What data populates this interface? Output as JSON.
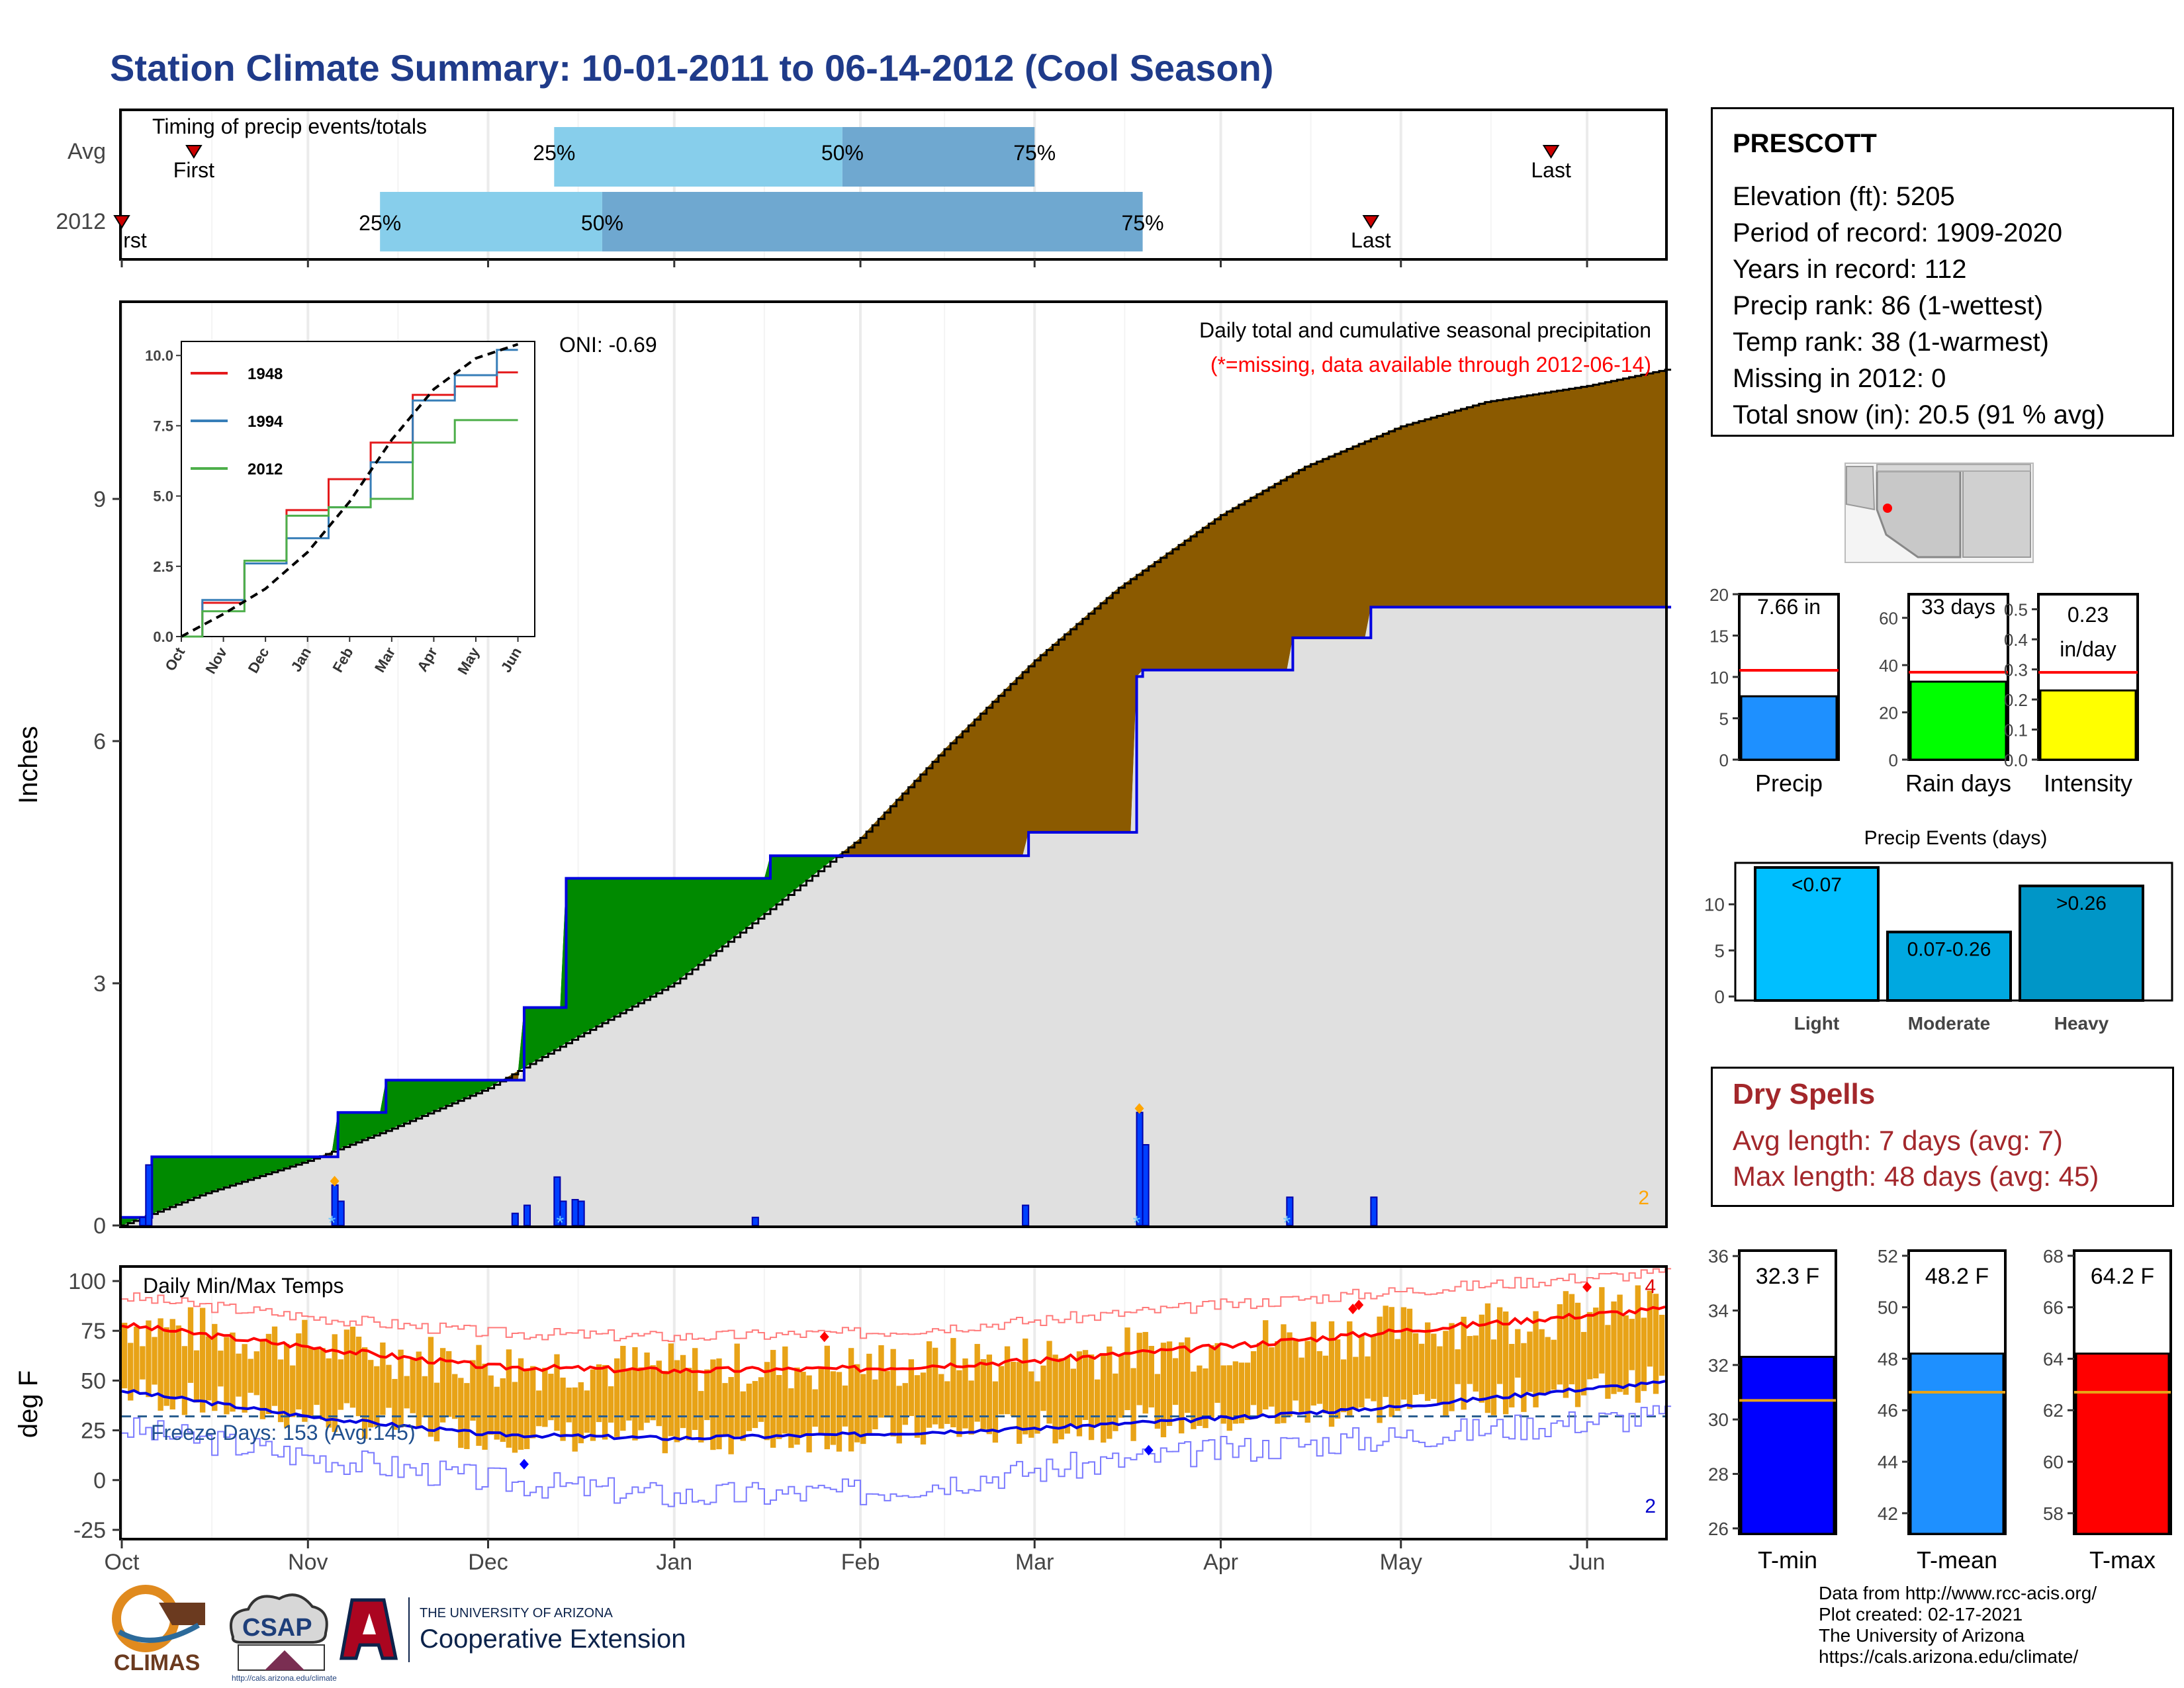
{
  "title": "Station Climate Summary: 10-01-2011 to 06-14-2012 (Cool Season)",
  "timing_panel": {
    "label": "Timing of precip events/totals",
    "rows": [
      "Avg",
      "2012"
    ],
    "first_label": "First",
    "first_label_2012": "rst",
    "last_label": "Last",
    "pct_labels": [
      "25%",
      "50%",
      "75%"
    ],
    "avg": {
      "first": "2011-10-13",
      "p25": "2011-12-12",
      "p50": "2012-01-29",
      "p75": "2012-03-01",
      "last": "2012-05-26"
    },
    "y2012": {
      "first": "2011-10-01",
      "p25": "2011-11-13",
      "p50": "2011-12-20",
      "p75": "2012-03-19",
      "last": "2012-04-26"
    },
    "colors": {
      "light": "#87ceeb",
      "dark": "#6fa8d0",
      "marker": "#cc0000"
    }
  },
  "precip_panel": {
    "heading": "Daily total and cumulative seasonal precipitation",
    "subheading": "(*=missing, data available through 2012-06-14)",
    "oni": "ONI: -0.69",
    "ylabel": "Inches",
    "corner_count": "2",
    "colors": {
      "deficit": "#8b5a00",
      "surplus": "#008a00",
      "base": "#e0e0e0",
      "actual": "#0000e0",
      "missing": "#ff0000"
    }
  },
  "inset": {
    "legend": [
      "1948",
      "1994",
      "2012"
    ],
    "colors": {
      "1948": "#e41a1c",
      "1994": "#377eb8",
      "2012": "#4daf4a"
    },
    "yticks": [
      "0.0",
      "2.5",
      "5.0",
      "7.5",
      "10.0"
    ],
    "xticks": [
      "Oct",
      "Nov",
      "Dec",
      "Jan",
      "Feb",
      "Mar",
      "Apr",
      "May",
      "Jun"
    ]
  },
  "temp_panel": {
    "heading": "Daily Min/Max Temps",
    "freeze_label": "Freeze Days: 153 (Avg:145)",
    "ylabel": "deg F",
    "yticks": [
      "100",
      "75",
      "50",
      "25",
      "0",
      "-25"
    ],
    "record_high_count": "4",
    "record_low_count": "2",
    "colors": {
      "bars": "#e8a317",
      "avg_max": "#ff0000",
      "avg_min": "#0000e0",
      "rec_max": "#ff7a7a",
      "rec_min": "#7a7aff",
      "freeze": "#2b5f8f"
    }
  },
  "months": [
    "Oct",
    "Nov",
    "Dec",
    "Jan",
    "Feb",
    "Mar",
    "Apr",
    "May",
    "Jun"
  ],
  "precip_yticks": [
    "0",
    "3",
    "6",
    "9"
  ],
  "station": {
    "name": "PRESCOTT",
    "lines": [
      "Elevation (ft): 5205",
      "Period of record: 1909-2020",
      "Years in record: 112",
      "Precip rank: 86 (1-wettest)",
      "Temp rank: 38 (1-warmest)",
      "Missing in 2012: 0",
      "Total snow (in): 20.5 (91 % avg)"
    ]
  },
  "small_bars": [
    {
      "label": "Precip",
      "value_label": "7.66 in",
      "value": 7.66,
      "avg": 10.8,
      "ymax": 20,
      "yticks": [
        "0",
        "5",
        "10",
        "15",
        "20"
      ],
      "color": "#1e90ff"
    },
    {
      "label": "Rain days",
      "value_label": "33 days",
      "value": 33,
      "avg": 37,
      "ymax": 70,
      "yticks": [
        "0",
        "20",
        "40",
        "60"
      ],
      "color": "#00ff00"
    },
    {
      "label": "Intensity",
      "value_label": "0.23\nin/day",
      "value_label_1": "0.23",
      "value_label_2": "in/day",
      "value": 0.23,
      "avg": 0.29,
      "ymax": 0.55,
      "yticks": [
        "0.0",
        "0.1",
        "0.2",
        "0.3",
        "0.4",
        "0.5"
      ],
      "color": "#ffff00"
    }
  ],
  "events": {
    "title": "Precip Events (days)",
    "categories": [
      "Light",
      "Moderate",
      "Heavy"
    ],
    "labels": [
      "<0.07",
      "0.07-0.26",
      ">0.26"
    ],
    "values": [
      14,
      7,
      12
    ],
    "yticks": [
      "0",
      "5",
      "10"
    ],
    "colors": [
      "#00bfff",
      "#00a8e0",
      "#0096c7"
    ]
  },
  "dry_spells": {
    "title": "Dry Spells",
    "lines": [
      "Avg length: 7 days (avg: 7)",
      "Max length: 48 days (avg: 45)"
    ]
  },
  "temp_bars": [
    {
      "label": "T-min",
      "value_label": "32.3 F",
      "value": 32.3,
      "avg": 30.7,
      "ymin": 25.8,
      "ymax": 36.2,
      "yticks": [
        "26",
        "28",
        "30",
        "32",
        "34",
        "36"
      ],
      "color": "#0000ff"
    },
    {
      "label": "T-mean",
      "value_label": "48.2 F",
      "value": 48.2,
      "avg": 46.7,
      "ymin": 41.2,
      "ymax": 52.2,
      "yticks": [
        "42",
        "44",
        "46",
        "48",
        "50",
        "52"
      ],
      "color": "#1e90ff"
    },
    {
      "label": "T-max",
      "value_label": "64.2 F",
      "value": 64.2,
      "avg": 62.7,
      "ymin": 57.2,
      "ymax": 68.2,
      "yticks": [
        "58",
        "60",
        "62",
        "64",
        "66",
        "68"
      ],
      "color": "#ff0000"
    }
  ],
  "credits": [
    "Data from http://www.rcc-acis.org/",
    "Plot created: 02-17-2021",
    "The University of Arizona",
    "https://cals.arizona.edu/climate/"
  ],
  "logos": {
    "climas": "CLIMAS",
    "csap": "CSAP",
    "csap_url": "http://cals.arizona.edu/climate",
    "ua_line1": "THE UNIVERSITY OF ARIZONA",
    "ua_line2": "Cooperative Extension"
  },
  "chart_data": [
    {
      "type": "area",
      "title": "Daily total and cumulative seasonal precipitation",
      "ylabel": "Inches",
      "ylim": [
        0,
        11.3
      ],
      "xlim": [
        "2011-10-01",
        "2012-06-14"
      ],
      "series": [
        {
          "name": "Average cumulative",
          "x": [
            "2011-10-01",
            "2011-10-15",
            "2011-11-01",
            "2011-11-15",
            "2011-12-01",
            "2011-12-15",
            "2012-01-01",
            "2012-01-15",
            "2012-02-01",
            "2012-02-15",
            "2012-03-01",
            "2012-03-15",
            "2012-04-01",
            "2012-04-15",
            "2012-05-01",
            "2012-05-15",
            "2012-06-01",
            "2012-06-14"
          ],
          "values": [
            0.0,
            0.4,
            0.8,
            1.2,
            1.7,
            2.3,
            3.0,
            3.8,
            4.8,
            5.9,
            7.0,
            7.9,
            8.8,
            9.4,
            9.9,
            10.2,
            10.4,
            10.6
          ]
        },
        {
          "name": "2012 cumulative",
          "x": [
            "2011-10-01",
            "2011-10-05",
            "2011-10-06",
            "2011-11-05",
            "2011-11-06",
            "2011-11-13",
            "2011-11-14",
            "2011-12-06",
            "2011-12-07",
            "2011-12-13",
            "2011-12-14",
            "2011-12-31",
            "2012-01-01",
            "2012-01-16",
            "2012-01-17",
            "2012-02-28",
            "2012-02-29",
            "2012-03-17",
            "2012-03-18",
            "2012-03-19",
            "2012-04-12",
            "2012-04-13",
            "2012-04-25",
            "2012-04-26",
            "2012-06-14"
          ],
          "values": [
            0.1,
            0.1,
            0.85,
            0.85,
            1.4,
            1.4,
            1.8,
            1.8,
            2.7,
            2.7,
            4.3,
            4.3,
            4.3,
            4.3,
            4.58,
            4.58,
            4.87,
            4.87,
            6.8,
            6.88,
            6.88,
            7.28,
            7.28,
            7.66,
            7.66
          ]
        }
      ],
      "daily_precip": {
        "x": [
          "2011-10-04",
          "2011-10-05",
          "2011-11-05",
          "2011-11-06",
          "2011-12-05",
          "2011-12-07",
          "2011-12-12",
          "2011-12-13",
          "2011-12-15",
          "2011-12-16",
          "2012-01-14",
          "2012-02-28",
          "2012-03-18",
          "2012-03-19",
          "2012-04-12",
          "2012-04-26"
        ],
        "values": [
          0.1,
          0.75,
          0.5,
          0.3,
          0.15,
          0.25,
          0.6,
          0.3,
          0.32,
          0.3,
          0.1,
          0.25,
          1.4,
          1.0,
          0.35,
          0.35
        ]
      }
    },
    {
      "type": "line",
      "title": "Daily Min/Max Temps",
      "ylabel": "deg F",
      "ylim": [
        -28,
        105
      ],
      "xlim": [
        "2011-10-01",
        "2012-06-14"
      ],
      "series": [
        {
          "name": "Average max",
          "x": [
            "2011-10-01",
            "2011-11-01",
            "2011-12-01",
            "2012-01-01",
            "2012-02-01",
            "2012-03-01",
            "2012-04-01",
            "2012-05-01",
            "2012-06-01",
            "2012-06-14"
          ],
          "values": [
            78,
            67,
            57,
            55,
            56,
            60,
            67,
            75,
            83,
            86
          ]
        },
        {
          "name": "Average min",
          "x": [
            "2011-10-01",
            "2011-11-01",
            "2011-12-01",
            "2012-01-01",
            "2012-02-01",
            "2012-03-01",
            "2012-04-01",
            "2012-05-01",
            "2012-06-01",
            "2012-06-14"
          ],
          "values": [
            45,
            32,
            23,
            21,
            23,
            26,
            31,
            37,
            46,
            49
          ]
        },
        {
          "name": "Record max",
          "x": [
            "2011-10-01",
            "2011-11-01",
            "2011-12-01",
            "2012-01-01",
            "2012-02-01",
            "2012-03-01",
            "2012-04-01",
            "2012-05-01",
            "2012-06-01",
            "2012-06-14"
          ],
          "values": [
            92,
            82,
            74,
            72,
            74,
            80,
            88,
            95,
            102,
            104
          ]
        },
        {
          "name": "Record min",
          "x": [
            "2011-10-01",
            "2011-11-01",
            "2011-12-01",
            "2012-01-01",
            "2012-02-01",
            "2012-03-01",
            "2012-04-01",
            "2012-05-01",
            "2012-06-01",
            "2012-06-14"
          ],
          "values": [
            26,
            12,
            0,
            -8,
            -6,
            5,
            15,
            22,
            30,
            32
          ]
        }
      ],
      "freeze_threshold": 32
    },
    {
      "type": "line",
      "title": "",
      "ylim": [
        0,
        10.5
      ],
      "categories": [
        "Oct",
        "Nov",
        "Dec",
        "Jan",
        "Feb",
        "Mar",
        "Apr",
        "May",
        "Jun"
      ],
      "series": [
        {
          "name": "1948",
          "values": [
            0.0,
            1.2,
            2.6,
            4.5,
            5.6,
            6.9,
            8.6,
            8.9,
            9.4
          ]
        },
        {
          "name": "1994",
          "values": [
            0.0,
            1.3,
            2.6,
            3.5,
            4.6,
            6.2,
            8.4,
            9.3,
            10.2
          ]
        },
        {
          "name": "2012",
          "values": [
            0.0,
            0.9,
            2.7,
            4.3,
            4.6,
            4.9,
            6.9,
            7.7,
            7.7
          ]
        },
        {
          "name": "Average",
          "values": [
            0.0,
            0.8,
            1.7,
            3.0,
            4.8,
            7.0,
            8.8,
            9.9,
            10.4
          ]
        }
      ]
    },
    {
      "type": "bar",
      "title": "Precip Events (days)",
      "categories": [
        "Light",
        "Moderate",
        "Heavy"
      ],
      "values": [
        14,
        7,
        12
      ],
      "ylim": [
        0,
        14.5
      ]
    }
  ]
}
